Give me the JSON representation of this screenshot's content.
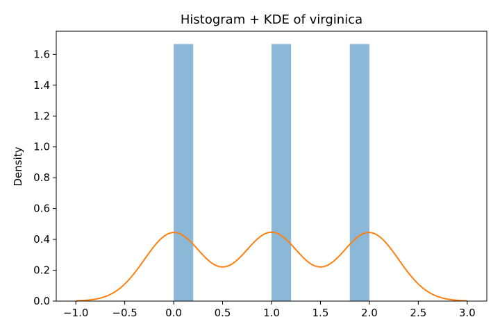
{
  "chart_data": {
    "type": "bar",
    "title": "Histogram + KDE of virginica",
    "xlabel": "",
    "ylabel": "Density",
    "xlim": [
      -1.2,
      3.2
    ],
    "ylim": [
      0.0,
      1.75
    ],
    "grid": false,
    "xticks": [
      -1.0,
      -0.5,
      0.0,
      0.5,
      1.0,
      1.5,
      2.0,
      2.5,
      3.0
    ],
    "xtick_labels": [
      "−1.0",
      "−0.5",
      "0.0",
      "0.5",
      "1.0",
      "1.5",
      "2.0",
      "2.5",
      "3.0"
    ],
    "yticks": [
      0.0,
      0.2,
      0.4,
      0.6,
      0.8,
      1.0,
      1.2,
      1.4,
      1.6
    ],
    "ytick_labels": [
      "0.0",
      "0.2",
      "0.4",
      "0.6",
      "0.8",
      "1.0",
      "1.2",
      "1.4",
      "1.6"
    ],
    "bars": [
      {
        "x0": 0.0,
        "x1": 0.2,
        "value": 1.667
      },
      {
        "x0": 1.0,
        "x1": 1.2,
        "value": 1.667
      },
      {
        "x0": 1.8,
        "x1": 2.0,
        "value": 1.667
      }
    ],
    "kde": {
      "x": [
        -1.0,
        -0.75,
        -0.5,
        -0.25,
        0.0,
        0.25,
        0.5,
        0.75,
        1.0,
        1.25,
        1.5,
        1.75,
        2.0,
        2.25,
        2.5,
        2.75,
        3.0
      ],
      "y": [
        0.005,
        0.03,
        0.12,
        0.3,
        0.445,
        0.35,
        0.225,
        0.35,
        0.445,
        0.35,
        0.225,
        0.35,
        0.445,
        0.3,
        0.12,
        0.03,
        0.005
      ]
    },
    "colors": {
      "bars": "#8cb8d8",
      "kde": "#ff7f0e"
    }
  }
}
